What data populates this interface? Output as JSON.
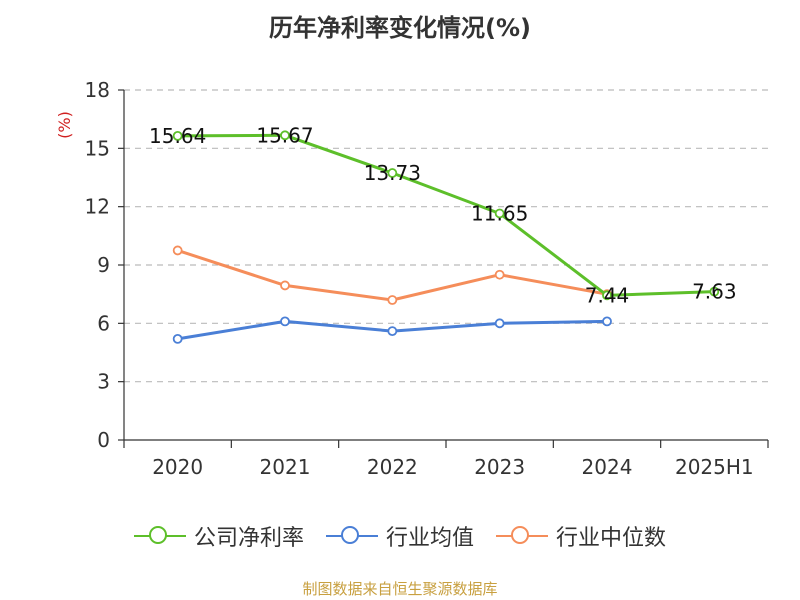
{
  "title": "历年净利率变化情况(%)",
  "source": "制图数据来自恒生聚源数据库",
  "chart_data": {
    "type": "line",
    "title": "历年净利率变化情况(%)",
    "ylabel": "(%)",
    "xlabel": "",
    "categories": [
      "2020",
      "2021",
      "2022",
      "2023",
      "2024",
      "2025H1"
    ],
    "ylim": [
      0,
      18
    ],
    "yticks": [
      0,
      3,
      6,
      9,
      12,
      15,
      18
    ],
    "grid": true,
    "legend_position": "bottom",
    "series": [
      {
        "name": "公司净利率",
        "color": "#5dbf2a",
        "values": [
          15.64,
          15.67,
          13.73,
          11.65,
          7.44,
          7.63
        ],
        "labels": [
          "15.64",
          "15.67",
          "13.73",
          "11.65",
          "7.44",
          "7.63"
        ],
        "show_labels": true
      },
      {
        "name": "行业均值",
        "color": "#4a7fd6",
        "values": [
          5.2,
          6.1,
          5.6,
          6.0,
          6.1,
          null
        ],
        "show_labels": false
      },
      {
        "name": "行业中位数",
        "color": "#f58d5a",
        "values": [
          9.75,
          7.95,
          7.2,
          8.5,
          7.5,
          null
        ],
        "show_labels": false
      }
    ]
  }
}
